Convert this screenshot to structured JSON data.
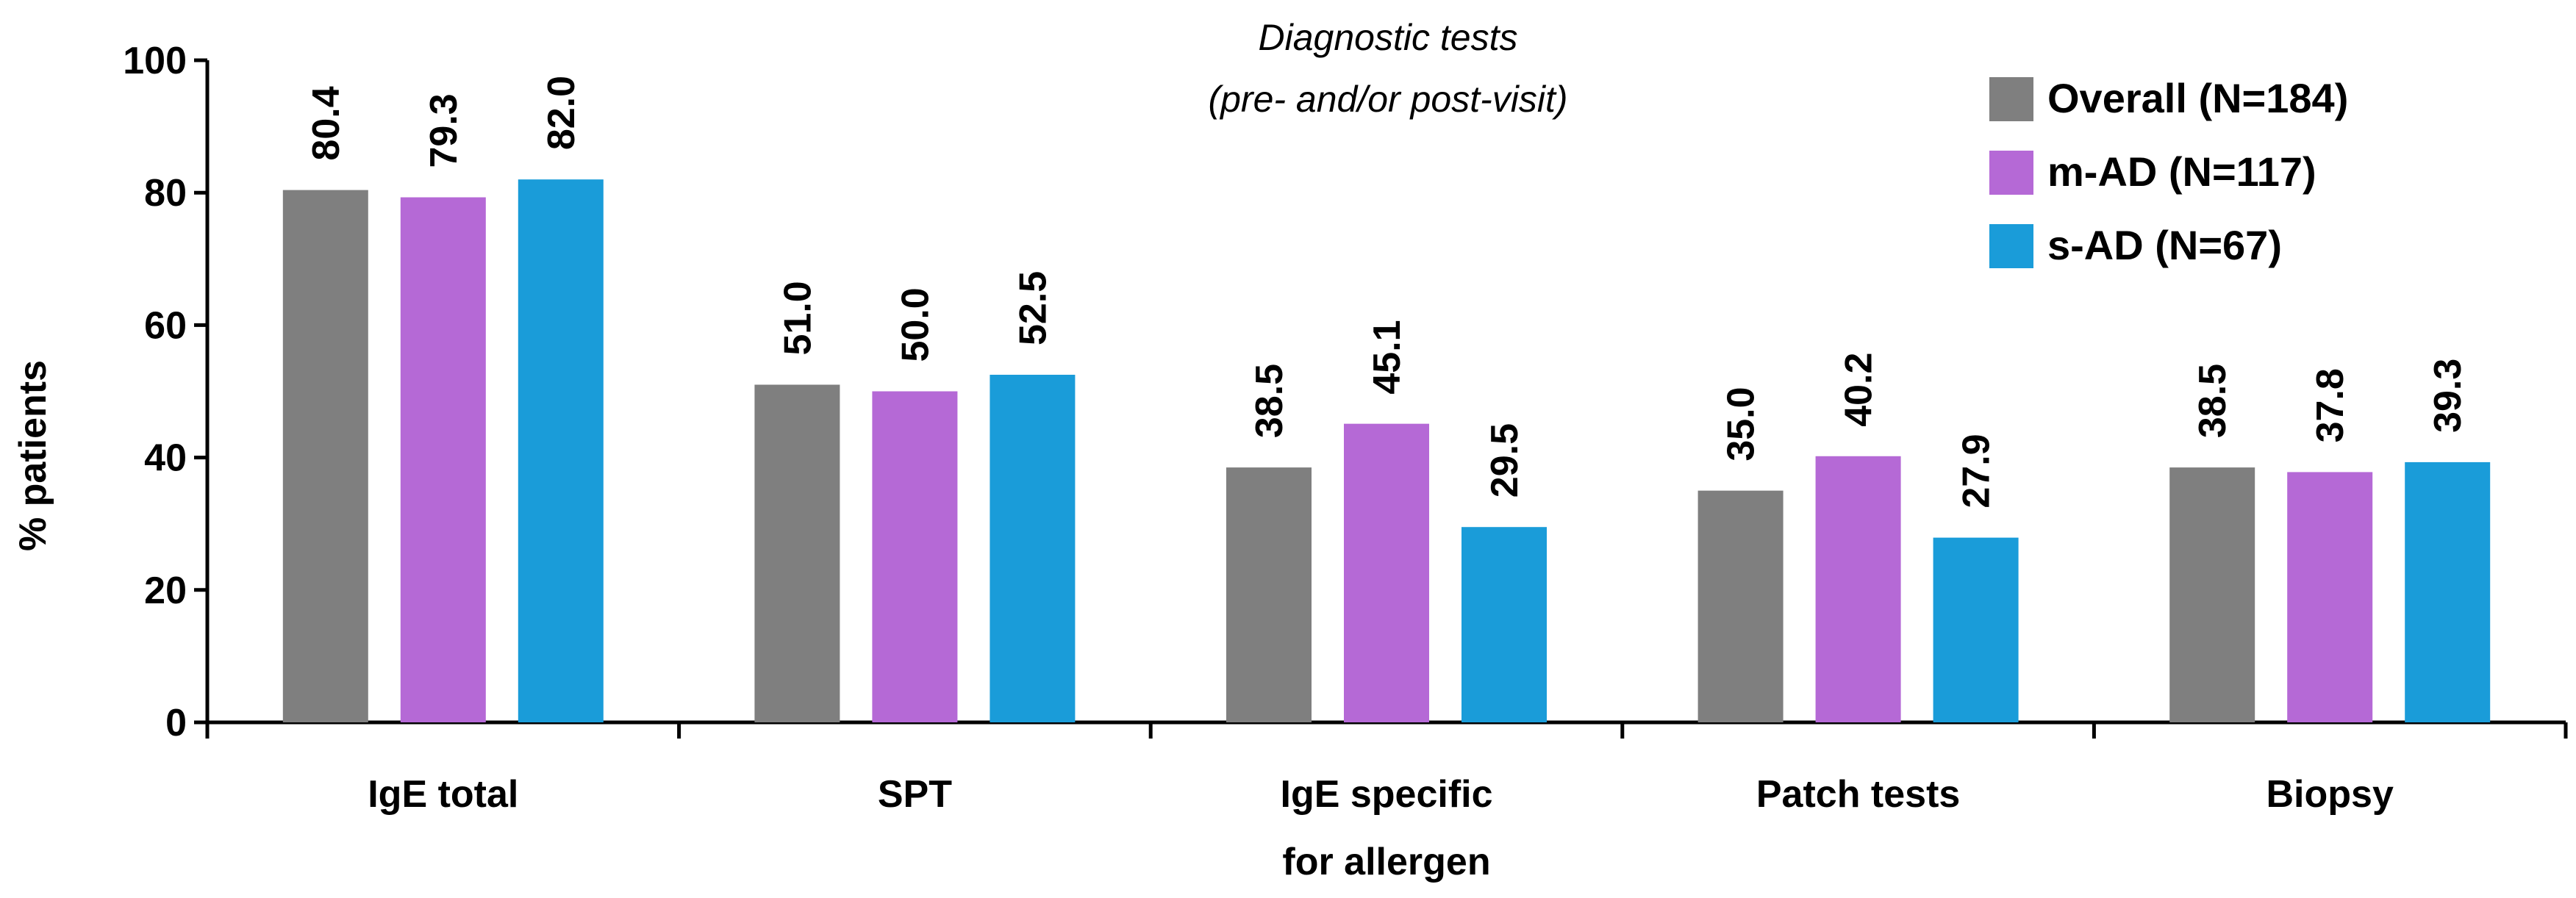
{
  "chart_data": {
    "type": "bar",
    "title": "Diagnostic tests",
    "subtitle": "(pre- and/or post-visit)",
    "ylabel": "% patients",
    "xlabel": "",
    "ylim": [
      0,
      100
    ],
    "yticks": [
      0,
      20,
      40,
      60,
      80,
      100
    ],
    "grid": false,
    "legend_position": "top-right",
    "categories": [
      [
        "IgE total"
      ],
      [
        "SPT"
      ],
      [
        "IgE specific",
        "for allergen"
      ],
      [
        "Patch tests"
      ],
      [
        "Biopsy"
      ]
    ],
    "series": [
      {
        "name": "Overall (N=184)",
        "color": "#7f7f7f",
        "values": [
          80.4,
          51.0,
          38.5,
          35.0,
          38.5
        ],
        "labels": [
          "80.4",
          "51.0",
          "38.5",
          "35.0",
          "38.5"
        ]
      },
      {
        "name": "m-AD (N=117)",
        "color": "#b569d6",
        "values": [
          79.3,
          50.0,
          45.1,
          40.2,
          37.8
        ],
        "labels": [
          "79.3",
          "50.0",
          "45.1",
          "40.2",
          "37.8"
        ]
      },
      {
        "name": "s-AD (N=67)",
        "color": "#1a9cd9",
        "values": [
          82.0,
          52.5,
          29.5,
          27.9,
          39.3
        ],
        "labels": [
          "82.0",
          "52.5",
          "29.5",
          "27.9",
          "39.3"
        ]
      }
    ]
  }
}
